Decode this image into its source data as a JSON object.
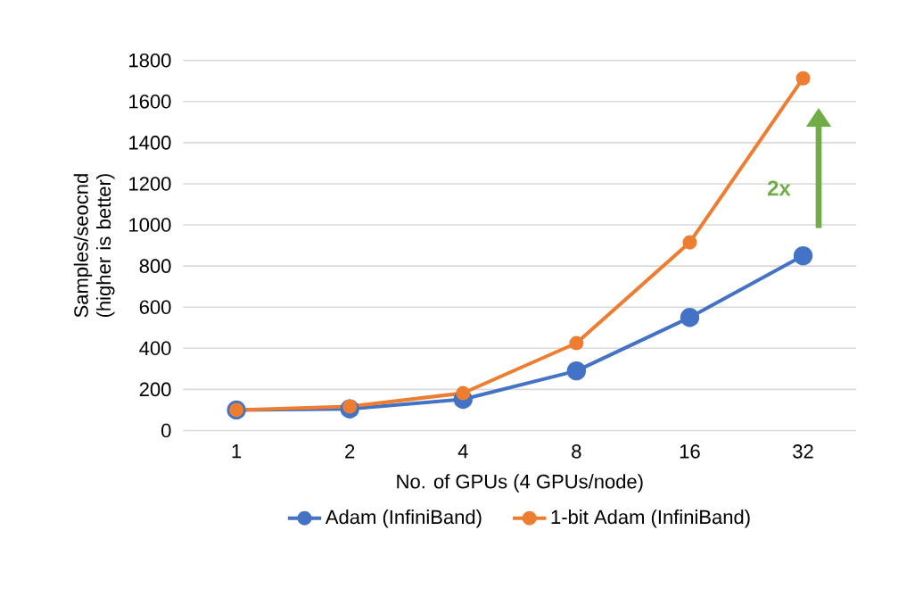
{
  "chart_data": {
    "type": "line",
    "xlabel": "No. of GPUs (4 GPUs/node)",
    "ylabel": "Samples/seocnd (higher is better)",
    "categories": [
      "1",
      "2",
      "4",
      "8",
      "16",
      "32"
    ],
    "series": [
      {
        "name": "Adam (InfiniBand)",
        "color": "#4472c4",
        "values": [
          100,
          105,
          152,
          290,
          550,
          850
        ]
      },
      {
        "name": "1-bit Adam (InfiniBand)",
        "color": "#ed7d31",
        "values": [
          100,
          117,
          182,
          425,
          915,
          1713
        ]
      }
    ],
    "ylim": [
      0,
      1800
    ],
    "yticks": [
      0,
      200,
      400,
      600,
      800,
      1000,
      1200,
      1400,
      1600,
      1800
    ],
    "grid": "y",
    "legend": "bottom",
    "marker": "circle",
    "line_style": "solid",
    "annotations": [
      "2x"
    ]
  }
}
